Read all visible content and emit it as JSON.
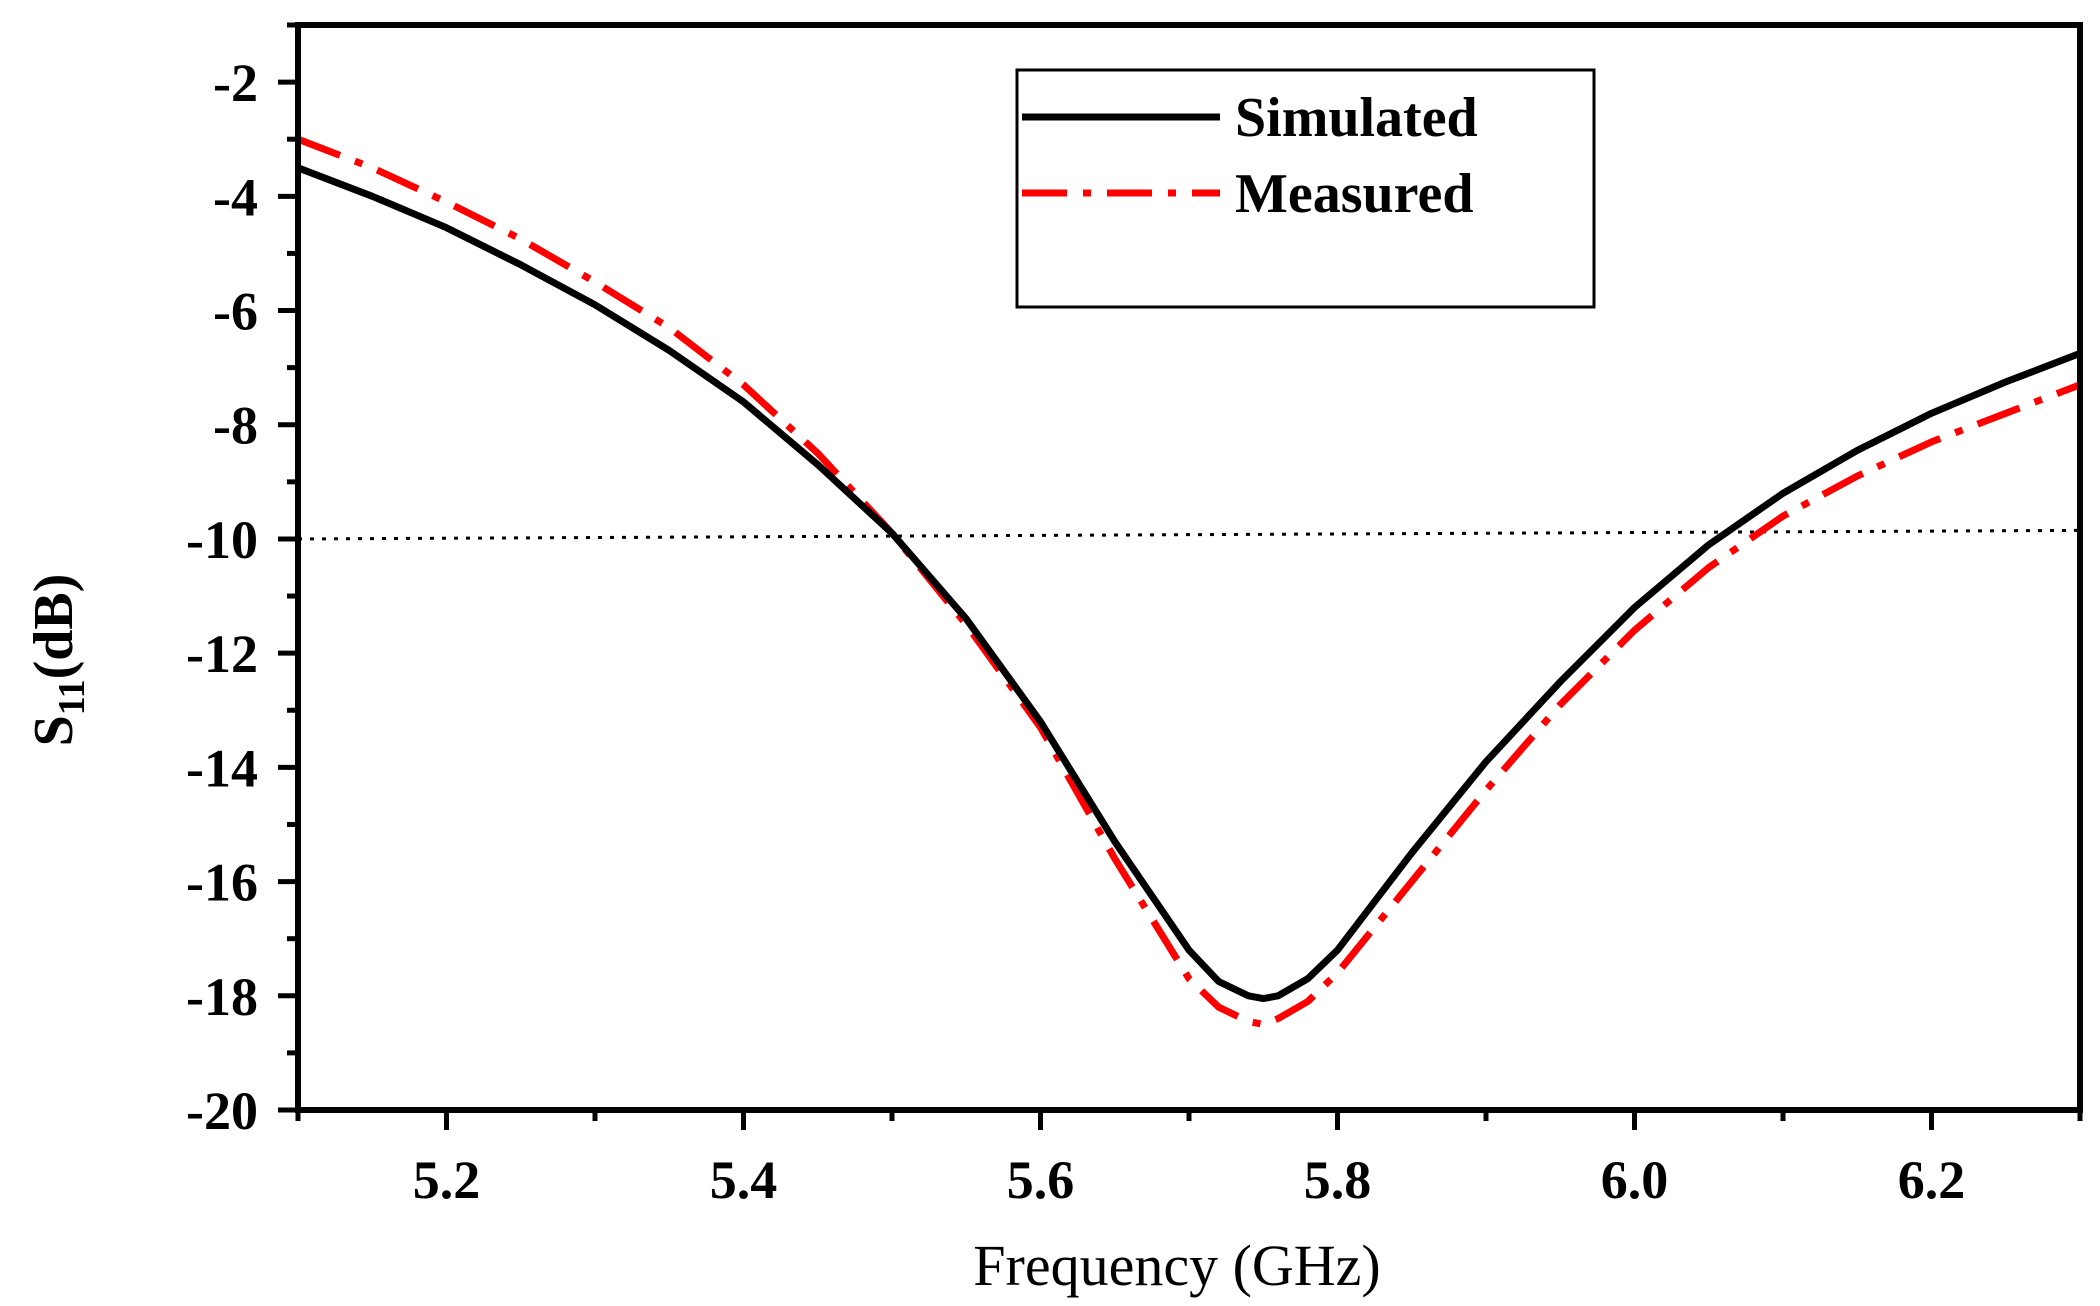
{
  "chart_data": {
    "type": "line",
    "title": "",
    "xlabel": "Frequency (GHz)",
    "ylabel_main": "S",
    "ylabel_sub": "11",
    "ylabel_unit": "(dB)",
    "xlim": [
      5.1,
      6.3
    ],
    "ylim": [
      -20,
      -1
    ],
    "x_ticks": [
      5.2,
      5.4,
      5.6,
      5.8,
      6.0,
      6.2
    ],
    "x_tick_labels": [
      "5.2",
      "5.4",
      "5.6",
      "5.8",
      "6.0",
      "6.2"
    ],
    "y_ticks": [
      -20,
      -18,
      -16,
      -14,
      -12,
      -10,
      -8,
      -6,
      -4,
      -2
    ],
    "y_tick_labels": [
      "-20",
      "-18",
      "-16",
      "-14",
      "-12",
      "-10",
      "-8",
      "-6",
      "-4",
      "-2"
    ],
    "grid": false,
    "legend_position": "top-right",
    "reference_line": {
      "x": [
        5.1,
        6.3
      ],
      "y": [
        -10.0,
        -9.85
      ],
      "style": "dotted",
      "color": "#000000"
    },
    "series": [
      {
        "name": "Simulated",
        "color": "#000000",
        "style": "solid",
        "x": [
          5.1,
          5.15,
          5.2,
          5.25,
          5.3,
          5.35,
          5.4,
          5.45,
          5.5,
          5.55,
          5.6,
          5.65,
          5.7,
          5.72,
          5.74,
          5.75,
          5.76,
          5.78,
          5.8,
          5.85,
          5.9,
          5.95,
          6.0,
          6.05,
          6.1,
          6.15,
          6.2,
          6.25,
          6.3
        ],
        "y": [
          -3.5,
          -4.0,
          -4.55,
          -5.2,
          -5.9,
          -6.7,
          -7.6,
          -8.7,
          -9.9,
          -11.4,
          -13.2,
          -15.3,
          -17.2,
          -17.75,
          -18.0,
          -18.05,
          -18.0,
          -17.7,
          -17.2,
          -15.5,
          -13.9,
          -12.5,
          -11.2,
          -10.1,
          -9.2,
          -8.45,
          -7.8,
          -7.25,
          -6.75
        ]
      },
      {
        "name": "Measured",
        "color": "#ff0000",
        "style": "dash-dot",
        "x": [
          5.1,
          5.15,
          5.2,
          5.25,
          5.3,
          5.35,
          5.4,
          5.45,
          5.5,
          5.55,
          5.6,
          5.65,
          5.7,
          5.72,
          5.74,
          5.75,
          5.76,
          5.78,
          5.8,
          5.85,
          5.9,
          5.95,
          6.0,
          6.05,
          6.1,
          6.15,
          6.2,
          6.25,
          6.3
        ],
        "y": [
          -3.0,
          -3.5,
          -4.1,
          -4.75,
          -5.5,
          -6.3,
          -7.3,
          -8.5,
          -9.9,
          -11.5,
          -13.3,
          -15.6,
          -17.7,
          -18.2,
          -18.45,
          -18.5,
          -18.4,
          -18.1,
          -17.6,
          -16.0,
          -14.4,
          -12.9,
          -11.6,
          -10.5,
          -9.6,
          -8.9,
          -8.3,
          -7.8,
          -7.3
        ]
      }
    ]
  }
}
